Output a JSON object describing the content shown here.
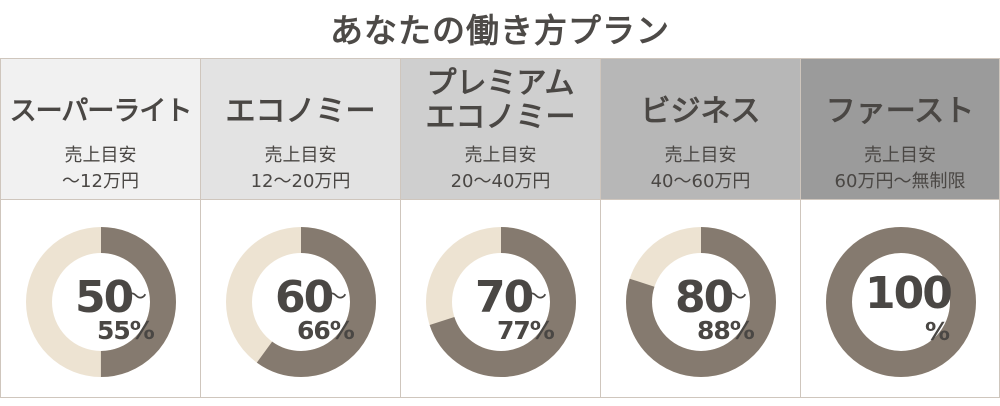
{
  "title": "あなたの働き方プラン",
  "colors": {
    "ring_filled": "#857a6f",
    "ring_empty": "#ede3d2",
    "border": "#cfc6bd"
  },
  "plans": [
    {
      "name": [
        "スーパーライト"
      ],
      "sub1": "売上目安",
      "sub2": "〜12万円",
      "head_bg": "#f1f1f1",
      "big": "50",
      "tilde": "〜",
      "small": "55%",
      "fill": 0.5
    },
    {
      "name": [
        "エコノミー"
      ],
      "sub1": "売上目安",
      "sub2": "12〜20万円",
      "head_bg": "#e3e3e3",
      "big": "60",
      "tilde": "〜",
      "small": "66%",
      "fill": 0.6
    },
    {
      "name": [
        "プレミアム",
        "エコノミー"
      ],
      "sub1": "売上目安",
      "sub2": "20〜40万円",
      "head_bg": "#cfcfcf",
      "big": "70",
      "tilde": "〜",
      "small": "77%",
      "fill": 0.7
    },
    {
      "name": [
        "ビジネス"
      ],
      "sub1": "売上目安",
      "sub2": "40〜60万円",
      "head_bg": "#b7b7b7",
      "big": "80",
      "tilde": "〜",
      "small": "88%",
      "fill": 0.8
    },
    {
      "name": [
        "ファースト"
      ],
      "sub1": "売上目安",
      "sub2": "60万円〜無制限",
      "head_bg": "#9b9b9b",
      "big": "100",
      "tilde": "",
      "small": "%",
      "fill": 1.0
    }
  ]
}
